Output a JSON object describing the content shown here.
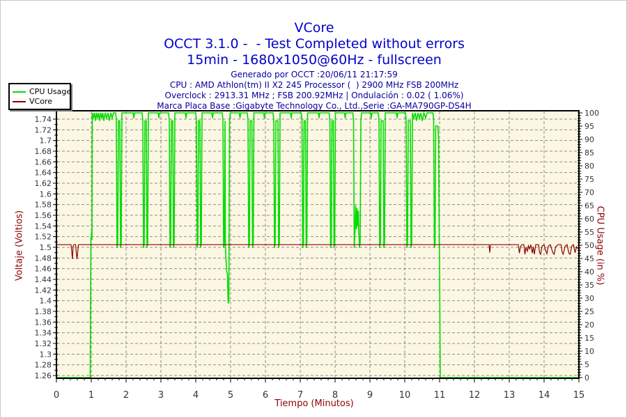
{
  "header": {
    "title": "VCore",
    "subtitle_status": "OCCT 3.1.0 -  - Test Completed without errors",
    "subtitle_config": "15min - 1680x1050@60Hz - fullscreen"
  },
  "info": {
    "generated": "Generado por OCCT :20/06/11 21:17:59",
    "cpu": "CPU : AMD Athlon(tm) II X2 245 Processor (  ) 2900 MHz FSB 200MHz",
    "overclock": "Overclock : 2913.31 MHz ; FSB 200.92MHz | Ondulación : 0.02 ( 1.06%)",
    "motherboard": "Marca Placa Base :Gigabyte Technology Co., Ltd.,Serie :GA-MA790GP-DS4H"
  },
  "colors": {
    "title_blue": "#0000cc",
    "info_blue": "#0000a0",
    "axis_title_red": "#8b0000",
    "tick_label": "#333333",
    "plot_bg": "#fbf7e2",
    "grid": "#8c8c8c",
    "axis_line": "#000000",
    "cpu_green": "#00dc00",
    "vcore_red": "#8b0000"
  },
  "legend": {
    "items": [
      {
        "label": "CPU Usage",
        "color": "#00dc00"
      },
      {
        "label": "VCore",
        "color": "#8b0000"
      }
    ]
  },
  "chart_data": {
    "type": "line",
    "title": "VCore",
    "grid": "dashed",
    "legend_position": "top-left",
    "x_axis": {
      "label": "Tiempo (Minutos)",
      "min": 0,
      "max": 15,
      "step": 1,
      "minor_step": 0.2
    },
    "left_axis": {
      "label": "Voltaje (Voltios)",
      "min": 1.26,
      "max": 1.74,
      "step": 0.02,
      "minor_step": 0.01
    },
    "right_axis": {
      "label": "CPU Usage (in %)",
      "min": 0,
      "max": 100,
      "step": 5,
      "minor_step": 1
    },
    "series": [
      {
        "name": "CPU Usage",
        "axis": "right",
        "color": "#00dc00",
        "unit": "%",
        "points": [
          [
            0,
            0
          ],
          [
            0.97,
            0
          ],
          [
            0.98,
            30
          ],
          [
            0.99,
            52
          ],
          [
            1.01,
            55
          ],
          [
            1.02,
            52
          ],
          [
            1.03,
            100
          ],
          [
            1.06,
            98
          ],
          [
            1.09,
            100
          ],
          [
            1.12,
            97
          ],
          [
            1.15,
            100
          ],
          [
            1.18,
            98
          ],
          [
            1.21,
            100
          ],
          [
            1.24,
            97
          ],
          [
            1.27,
            100
          ],
          [
            1.3,
            98
          ],
          [
            1.33,
            100
          ],
          [
            1.36,
            97
          ],
          [
            1.4,
            100
          ],
          [
            1.44,
            98
          ],
          [
            1.48,
            100
          ],
          [
            1.52,
            97
          ],
          [
            1.56,
            100
          ],
          [
            1.6,
            98
          ],
          [
            1.64,
            100
          ],
          [
            1.7,
            100
          ],
          [
            1.72,
            97
          ],
          [
            1.74,
            49
          ],
          [
            1.76,
            51
          ],
          [
            1.78,
            97
          ],
          [
            1.82,
            97
          ],
          [
            1.84,
            49
          ],
          [
            1.86,
            51
          ],
          [
            1.88,
            100
          ],
          [
            2.2,
            100
          ],
          [
            2.22,
            98
          ],
          [
            2.24,
            100
          ],
          [
            2.46,
            100
          ],
          [
            2.48,
            97
          ],
          [
            2.5,
            49
          ],
          [
            2.52,
            51
          ],
          [
            2.54,
            97
          ],
          [
            2.58,
            97
          ],
          [
            2.6,
            49
          ],
          [
            2.62,
            51
          ],
          [
            2.64,
            100
          ],
          [
            2.92,
            100
          ],
          [
            2.94,
            98
          ],
          [
            2.96,
            100
          ],
          [
            3.22,
            100
          ],
          [
            3.24,
            97
          ],
          [
            3.26,
            49
          ],
          [
            3.28,
            51
          ],
          [
            3.3,
            97
          ],
          [
            3.34,
            97
          ],
          [
            3.36,
            49
          ],
          [
            3.38,
            51
          ],
          [
            3.4,
            100
          ],
          [
            3.7,
            100
          ],
          [
            3.72,
            98
          ],
          [
            3.74,
            100
          ],
          [
            4.0,
            100
          ],
          [
            4.02,
            97
          ],
          [
            4.04,
            49
          ],
          [
            4.06,
            51
          ],
          [
            4.08,
            97
          ],
          [
            4.12,
            97
          ],
          [
            4.14,
            49
          ],
          [
            4.16,
            51
          ],
          [
            4.18,
            100
          ],
          [
            4.46,
            100
          ],
          [
            4.48,
            98
          ],
          [
            4.5,
            100
          ],
          [
            4.76,
            100
          ],
          [
            4.78,
            97
          ],
          [
            4.8,
            49
          ],
          [
            4.82,
            51
          ],
          [
            4.84,
            97
          ],
          [
            4.85,
            50
          ],
          [
            4.87,
            44
          ],
          [
            4.89,
            40
          ],
          [
            4.91,
            39
          ],
          [
            4.93,
            28
          ],
          [
            4.95,
            29
          ],
          [
            4.97,
            97
          ],
          [
            4.99,
            100
          ],
          [
            5.25,
            100
          ],
          [
            5.27,
            98
          ],
          [
            5.29,
            100
          ],
          [
            5.48,
            100
          ],
          [
            5.5,
            97
          ],
          [
            5.52,
            49
          ],
          [
            5.54,
            51
          ],
          [
            5.56,
            97
          ],
          [
            5.61,
            97
          ],
          [
            5.63,
            49
          ],
          [
            5.65,
            51
          ],
          [
            5.67,
            100
          ],
          [
            5.95,
            100
          ],
          [
            5.97,
            98
          ],
          [
            5.99,
            100
          ],
          [
            6.22,
            100
          ],
          [
            6.24,
            97
          ],
          [
            6.26,
            49
          ],
          [
            6.28,
            51
          ],
          [
            6.3,
            97
          ],
          [
            6.36,
            97
          ],
          [
            6.38,
            49
          ],
          [
            6.4,
            51
          ],
          [
            6.42,
            100
          ],
          [
            6.72,
            100
          ],
          [
            6.74,
            98
          ],
          [
            6.76,
            100
          ],
          [
            7.03,
            100
          ],
          [
            7.05,
            97
          ],
          [
            7.07,
            49
          ],
          [
            7.09,
            51
          ],
          [
            7.11,
            97
          ],
          [
            7.15,
            97
          ],
          [
            7.17,
            49
          ],
          [
            7.19,
            51
          ],
          [
            7.21,
            100
          ],
          [
            7.52,
            100
          ],
          [
            7.54,
            98
          ],
          [
            7.56,
            100
          ],
          [
            7.83,
            100
          ],
          [
            7.85,
            97
          ],
          [
            7.87,
            49
          ],
          [
            7.89,
            51
          ],
          [
            7.91,
            97
          ],
          [
            7.95,
            97
          ],
          [
            7.97,
            49
          ],
          [
            7.99,
            51
          ],
          [
            8.01,
            100
          ],
          [
            8.27,
            100
          ],
          [
            8.29,
            98
          ],
          [
            8.31,
            100
          ],
          [
            8.51,
            100
          ],
          [
            8.53,
            97
          ],
          [
            8.55,
            49
          ],
          [
            8.57,
            55
          ],
          [
            8.59,
            65
          ],
          [
            8.61,
            56
          ],
          [
            8.63,
            64
          ],
          [
            8.65,
            57
          ],
          [
            8.67,
            63
          ],
          [
            8.68,
            55
          ],
          [
            8.7,
            49
          ],
          [
            8.72,
            51
          ],
          [
            8.74,
            97
          ],
          [
            8.76,
            100
          ],
          [
            9.02,
            100
          ],
          [
            9.04,
            98
          ],
          [
            9.06,
            100
          ],
          [
            9.24,
            100
          ],
          [
            9.26,
            97
          ],
          [
            9.28,
            49
          ],
          [
            9.3,
            51
          ],
          [
            9.32,
            97
          ],
          [
            9.38,
            97
          ],
          [
            9.4,
            49
          ],
          [
            9.42,
            51
          ],
          [
            9.44,
            100
          ],
          [
            9.76,
            100
          ],
          [
            9.78,
            98
          ],
          [
            9.8,
            100
          ],
          [
            10.02,
            100
          ],
          [
            10.04,
            97
          ],
          [
            10.06,
            49
          ],
          [
            10.08,
            51
          ],
          [
            10.1,
            97
          ],
          [
            10.16,
            97
          ],
          [
            10.18,
            49
          ],
          [
            10.2,
            51
          ],
          [
            10.22,
            100
          ],
          [
            10.26,
            98
          ],
          [
            10.3,
            100
          ],
          [
            10.34,
            97
          ],
          [
            10.38,
            100
          ],
          [
            10.42,
            98
          ],
          [
            10.46,
            100
          ],
          [
            10.5,
            97
          ],
          [
            10.55,
            100
          ],
          [
            10.6,
            98
          ],
          [
            10.64,
            100
          ],
          [
            10.81,
            100
          ],
          [
            10.83,
            97
          ],
          [
            10.85,
            49
          ],
          [
            10.87,
            51
          ],
          [
            10.89,
            95
          ],
          [
            10.95,
            95
          ],
          [
            10.97,
            90
          ],
          [
            10.99,
            53
          ],
          [
            11.0,
            40
          ],
          [
            11.02,
            0
          ],
          [
            15,
            0
          ]
        ]
      },
      {
        "name": "VCore",
        "axis": "left",
        "color": "#8b0000",
        "unit": "V",
        "points": [
          [
            0,
            1.505
          ],
          [
            0.42,
            1.505
          ],
          [
            0.44,
            1.492
          ],
          [
            0.46,
            1.478
          ],
          [
            0.48,
            1.503
          ],
          [
            0.5,
            1.505
          ],
          [
            0.55,
            1.505
          ],
          [
            0.57,
            1.49
          ],
          [
            0.59,
            1.478
          ],
          [
            0.61,
            1.49
          ],
          [
            0.63,
            1.505
          ],
          [
            12.38,
            1.505
          ],
          [
            12.42,
            1.505
          ],
          [
            12.44,
            1.49
          ],
          [
            12.46,
            1.505
          ],
          [
            13.22,
            1.505
          ],
          [
            13.26,
            1.505
          ],
          [
            13.29,
            1.489
          ],
          [
            13.32,
            1.501
          ],
          [
            13.36,
            1.505
          ],
          [
            13.42,
            1.505
          ],
          [
            13.45,
            1.487
          ],
          [
            13.48,
            1.5
          ],
          [
            13.52,
            1.493
          ],
          [
            13.55,
            1.503
          ],
          [
            13.58,
            1.497
          ],
          [
            13.62,
            1.505
          ],
          [
            13.66,
            1.489
          ],
          [
            13.69,
            1.501
          ],
          [
            13.72,
            1.487
          ],
          [
            13.76,
            1.505
          ],
          [
            13.84,
            1.505
          ],
          [
            13.87,
            1.49
          ],
          [
            13.9,
            1.487
          ],
          [
            13.94,
            1.502
          ],
          [
            14.0,
            1.505
          ],
          [
            14.04,
            1.495
          ],
          [
            14.08,
            1.488
          ],
          [
            14.12,
            1.502
          ],
          [
            14.18,
            1.505
          ],
          [
            14.25,
            1.49
          ],
          [
            14.29,
            1.487
          ],
          [
            14.33,
            1.501
          ],
          [
            14.4,
            1.505
          ],
          [
            14.49,
            1.505
          ],
          [
            14.52,
            1.49
          ],
          [
            14.55,
            1.487
          ],
          [
            14.6,
            1.502
          ],
          [
            14.66,
            1.505
          ],
          [
            14.71,
            1.489
          ],
          [
            14.75,
            1.487
          ],
          [
            14.79,
            1.502
          ],
          [
            14.84,
            1.505
          ],
          [
            14.89,
            1.49
          ],
          [
            14.93,
            1.501
          ],
          [
            14.97,
            1.498
          ],
          [
            15,
            1.5
          ]
        ]
      }
    ]
  }
}
